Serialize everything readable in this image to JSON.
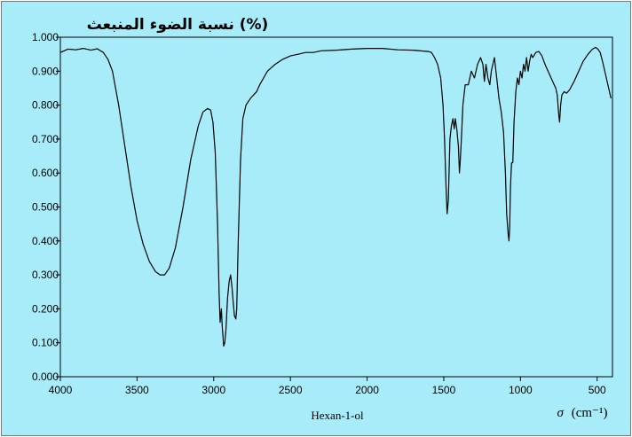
{
  "chart_data": {
    "type": "line",
    "title": "(%) نسبة الضوء المنبعث",
    "caption": "Hexan-1-ol",
    "xlabel_symbol": "σ",
    "xlabel_unit": "(cm⁻¹)",
    "xlim": [
      4000,
      400
    ],
    "ylim": [
      0,
      1
    ],
    "x_ticks": [
      "4000",
      "3500",
      "3000",
      "2500",
      "2000",
      "1500",
      "1000",
      "500"
    ],
    "y_ticks": [
      "0.000",
      "0.100",
      "0.200",
      "0.300",
      "0.400",
      "0.500",
      "0.600",
      "0.700",
      "0.800",
      "0.900",
      "1.000"
    ],
    "grid": false,
    "colors": {
      "background": "#a8ecfa",
      "line": "#000000"
    },
    "series": [
      {
        "points": [
          [
            4000,
            0.955
          ],
          [
            3950,
            0.965
          ],
          [
            3900,
            0.963
          ],
          [
            3850,
            0.967
          ],
          [
            3800,
            0.962
          ],
          [
            3760,
            0.966
          ],
          [
            3720,
            0.955
          ],
          [
            3690,
            0.935
          ],
          [
            3660,
            0.9
          ],
          [
            3620,
            0.8
          ],
          [
            3580,
            0.68
          ],
          [
            3540,
            0.56
          ],
          [
            3500,
            0.46
          ],
          [
            3460,
            0.39
          ],
          [
            3420,
            0.34
          ],
          [
            3380,
            0.31
          ],
          [
            3350,
            0.3
          ],
          [
            3320,
            0.3
          ],
          [
            3290,
            0.32
          ],
          [
            3250,
            0.38
          ],
          [
            3200,
            0.5
          ],
          [
            3150,
            0.64
          ],
          [
            3100,
            0.74
          ],
          [
            3070,
            0.78
          ],
          [
            3040,
            0.79
          ],
          [
            3020,
            0.785
          ],
          [
            3005,
            0.75
          ],
          [
            2990,
            0.66
          ],
          [
            2975,
            0.45
          ],
          [
            2965,
            0.25
          ],
          [
            2958,
            0.16
          ],
          [
            2950,
            0.2
          ],
          [
            2945,
            0.15
          ],
          [
            2935,
            0.09
          ],
          [
            2928,
            0.1
          ],
          [
            2920,
            0.14
          ],
          [
            2910,
            0.23
          ],
          [
            2900,
            0.28
          ],
          [
            2890,
            0.3
          ],
          [
            2880,
            0.26
          ],
          [
            2873,
            0.22
          ],
          [
            2865,
            0.18
          ],
          [
            2856,
            0.17
          ],
          [
            2850,
            0.2
          ],
          [
            2840,
            0.4
          ],
          [
            2825,
            0.64
          ],
          [
            2810,
            0.76
          ],
          [
            2790,
            0.8
          ],
          [
            2760,
            0.82
          ],
          [
            2720,
            0.84
          ],
          [
            2700,
            0.86
          ],
          [
            2650,
            0.9
          ],
          [
            2600,
            0.92
          ],
          [
            2550,
            0.935
          ],
          [
            2500,
            0.945
          ],
          [
            2450,
            0.95
          ],
          [
            2400,
            0.955
          ],
          [
            2350,
            0.955
          ],
          [
            2300,
            0.96
          ],
          [
            2200,
            0.962
          ],
          [
            2100,
            0.965
          ],
          [
            2000,
            0.967
          ],
          [
            1900,
            0.967
          ],
          [
            1800,
            0.963
          ],
          [
            1700,
            0.962
          ],
          [
            1600,
            0.958
          ],
          [
            1580,
            0.955
          ],
          [
            1560,
            0.94
          ],
          [
            1540,
            0.92
          ],
          [
            1520,
            0.88
          ],
          [
            1505,
            0.8
          ],
          [
            1495,
            0.7
          ],
          [
            1485,
            0.56
          ],
          [
            1478,
            0.48
          ],
          [
            1470,
            0.52
          ],
          [
            1460,
            0.7
          ],
          [
            1450,
            0.74
          ],
          [
            1440,
            0.76
          ],
          [
            1432,
            0.73
          ],
          [
            1425,
            0.76
          ],
          [
            1415,
            0.73
          ],
          [
            1405,
            0.68
          ],
          [
            1398,
            0.6
          ],
          [
            1392,
            0.64
          ],
          [
            1385,
            0.7
          ],
          [
            1375,
            0.8
          ],
          [
            1360,
            0.86
          ],
          [
            1340,
            0.86
          ],
          [
            1320,
            0.9
          ],
          [
            1300,
            0.88
          ],
          [
            1280,
            0.92
          ],
          [
            1260,
            0.94
          ],
          [
            1245,
            0.92
          ],
          [
            1235,
            0.87
          ],
          [
            1225,
            0.92
          ],
          [
            1212,
            0.88
          ],
          [
            1200,
            0.86
          ],
          [
            1190,
            0.9
          ],
          [
            1180,
            0.92
          ],
          [
            1170,
            0.94
          ],
          [
            1155,
            0.88
          ],
          [
            1140,
            0.82
          ],
          [
            1125,
            0.78
          ],
          [
            1110,
            0.72
          ],
          [
            1098,
            0.6
          ],
          [
            1090,
            0.48
          ],
          [
            1080,
            0.42
          ],
          [
            1075,
            0.4
          ],
          [
            1070,
            0.44
          ],
          [
            1065,
            0.56
          ],
          [
            1058,
            0.63
          ],
          [
            1050,
            0.63
          ],
          [
            1042,
            0.75
          ],
          [
            1030,
            0.84
          ],
          [
            1020,
            0.88
          ],
          [
            1010,
            0.86
          ],
          [
            1000,
            0.9
          ],
          [
            990,
            0.88
          ],
          [
            980,
            0.92
          ],
          [
            970,
            0.9
          ],
          [
            960,
            0.94
          ],
          [
            950,
            0.9
          ],
          [
            940,
            0.93
          ],
          [
            930,
            0.95
          ],
          [
            920,
            0.94
          ],
          [
            900,
            0.955
          ],
          [
            880,
            0.958
          ],
          [
            860,
            0.945
          ],
          [
            840,
            0.92
          ],
          [
            820,
            0.9
          ],
          [
            800,
            0.88
          ],
          [
            780,
            0.86
          ],
          [
            770,
            0.85
          ],
          [
            760,
            0.83
          ],
          [
            752,
            0.78
          ],
          [
            745,
            0.75
          ],
          [
            738,
            0.8
          ],
          [
            730,
            0.83
          ],
          [
            715,
            0.84
          ],
          [
            700,
            0.835
          ],
          [
            680,
            0.845
          ],
          [
            650,
            0.87
          ],
          [
            620,
            0.9
          ],
          [
            590,
            0.93
          ],
          [
            560,
            0.95
          ],
          [
            530,
            0.965
          ],
          [
            510,
            0.97
          ],
          [
            495,
            0.965
          ],
          [
            480,
            0.955
          ],
          [
            460,
            0.92
          ],
          [
            440,
            0.88
          ],
          [
            425,
            0.85
          ],
          [
            410,
            0.82
          ]
        ]
      }
    ]
  }
}
